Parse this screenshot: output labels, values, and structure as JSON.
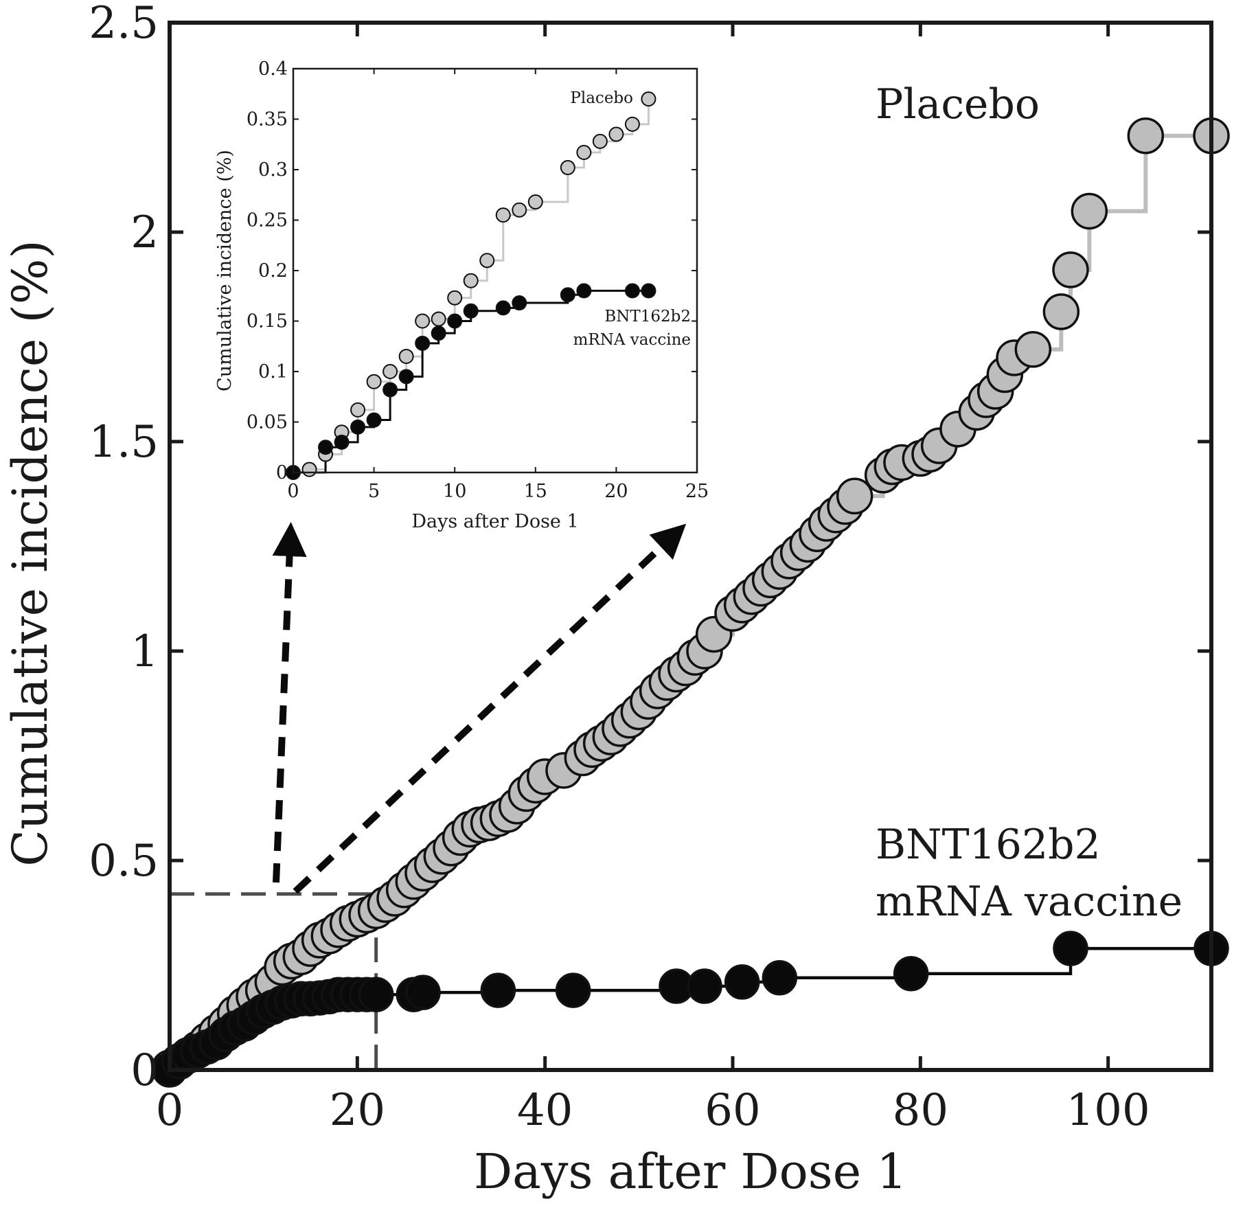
{
  "chart_data": [
    {
      "name": "main",
      "type": "scatter",
      "xlabel": "Days after Dose 1",
      "ylabel": "Cumulative incidence (%)",
      "xlim": [
        0,
        111
      ],
      "ylim": [
        0,
        2.5
      ],
      "xticks": [
        0,
        20,
        40,
        60,
        80,
        100
      ],
      "yticks": [
        0,
        0.5,
        1,
        1.5,
        2,
        2.5
      ],
      "xtick_labels": [
        "0",
        "20",
        "40",
        "60",
        "80",
        "100"
      ],
      "ytick_labels": [
        "0",
        "0.5",
        "1",
        "1.5",
        "2",
        "2.5"
      ],
      "grid": false,
      "zoom_box": {
        "x": [
          0,
          22
        ],
        "y": [
          0,
          0.42
        ]
      },
      "series": [
        {
          "name": "Placebo",
          "label_lines": [
            "Placebo"
          ],
          "color": "#bdbdbd",
          "line_color": "#bdbdbd",
          "x": [
            0,
            1,
            2,
            3,
            4,
            5,
            6,
            7,
            8,
            9,
            10,
            11,
            12,
            13,
            14,
            15,
            16,
            17,
            18,
            19,
            20,
            21,
            22,
            23,
            24,
            25,
            26,
            27,
            28,
            29,
            30,
            31,
            32,
            33,
            34,
            35,
            36,
            37,
            38,
            39,
            40,
            42,
            44,
            45,
            46,
            47,
            48,
            49,
            50,
            51,
            52,
            53,
            54,
            55,
            56,
            57,
            58,
            60,
            61,
            62,
            63,
            64,
            65,
            66,
            67,
            68,
            69,
            70,
            71,
            72,
            73,
            76,
            77,
            78,
            80,
            81,
            82,
            84,
            86,
            87,
            88,
            89,
            90,
            92,
            95,
            96,
            98,
            104,
            111
          ],
          "y": [
            0.005,
            0.02,
            0.035,
            0.05,
            0.07,
            0.09,
            0.11,
            0.135,
            0.155,
            0.175,
            0.19,
            0.21,
            0.245,
            0.26,
            0.27,
            0.29,
            0.31,
            0.32,
            0.335,
            0.35,
            0.36,
            0.37,
            0.38,
            0.395,
            0.41,
            0.43,
            0.45,
            0.47,
            0.49,
            0.51,
            0.53,
            0.555,
            0.575,
            0.585,
            0.59,
            0.6,
            0.61,
            0.63,
            0.66,
            0.68,
            0.7,
            0.715,
            0.745,
            0.765,
            0.78,
            0.795,
            0.815,
            0.835,
            0.855,
            0.88,
            0.905,
            0.925,
            0.945,
            0.96,
            0.985,
            1.0,
            1.04,
            1.09,
            1.11,
            1.13,
            1.15,
            1.17,
            1.19,
            1.215,
            1.235,
            1.255,
            1.28,
            1.305,
            1.325,
            1.345,
            1.37,
            1.42,
            1.44,
            1.45,
            1.46,
            1.47,
            1.49,
            1.53,
            1.57,
            1.6,
            1.62,
            1.66,
            1.7,
            1.72,
            1.81,
            1.91,
            2.05,
            2.23,
            2.23
          ]
        },
        {
          "name": "BNT162b2 mRNA vaccine",
          "label_lines": [
            "BNT162b2",
            "mRNA vaccine"
          ],
          "color": "#0a0a0a",
          "line_color": "#0a0a0a",
          "x": [
            0,
            1,
            2,
            3,
            4,
            5,
            6,
            7,
            8,
            9,
            10,
            11,
            12,
            13,
            14,
            15,
            16,
            17,
            18,
            19,
            20,
            21,
            22,
            26,
            27,
            35,
            43,
            54,
            57,
            61,
            65,
            79,
            96,
            111
          ],
          "y": [
            0.0,
            0.02,
            0.035,
            0.045,
            0.055,
            0.065,
            0.085,
            0.1,
            0.11,
            0.125,
            0.14,
            0.15,
            0.16,
            0.165,
            0.17,
            0.17,
            0.172,
            0.175,
            0.18,
            0.18,
            0.18,
            0.18,
            0.18,
            0.18,
            0.185,
            0.19,
            0.19,
            0.2,
            0.2,
            0.21,
            0.22,
            0.23,
            0.29,
            0.29
          ]
        }
      ]
    },
    {
      "name": "inset",
      "type": "scatter",
      "xlabel": "Days after Dose 1",
      "ylabel": "Cumulative incidence (%)",
      "xlim": [
        0,
        25
      ],
      "ylim": [
        0,
        0.4
      ],
      "xticks": [
        0,
        5,
        10,
        15,
        20,
        25
      ],
      "yticks": [
        0,
        0.05,
        0.1,
        0.15,
        0.2,
        0.25,
        0.3,
        0.35,
        0.4
      ],
      "xtick_labels": [
        "0",
        "5",
        "10",
        "15",
        "20",
        "25"
      ],
      "ytick_labels": [
        "0",
        "0.05",
        "0.1",
        "0.15",
        "0.2",
        "0.25",
        "0.3",
        "0.35",
        "0.4"
      ],
      "grid": false,
      "series": [
        {
          "name": "Placebo",
          "label_lines": [
            "Placebo"
          ],
          "color": "#c8c8c8",
          "line_color": "#c8c8c8",
          "x": [
            1,
            2,
            3,
            4,
            5,
            6,
            7,
            8,
            9,
            10,
            11,
            12,
            13,
            14,
            15,
            17,
            18,
            19,
            20,
            21,
            22
          ],
          "y": [
            0.003,
            0.018,
            0.04,
            0.062,
            0.09,
            0.1,
            0.115,
            0.15,
            0.152,
            0.173,
            0.19,
            0.21,
            0.255,
            0.26,
            0.268,
            0.302,
            0.317,
            0.328,
            0.335,
            0.345,
            0.37
          ]
        },
        {
          "name": "BNT162b2 mRNA vaccine",
          "label_lines": [
            "BNT162b2",
            "mRNA vaccine"
          ],
          "color": "#0a0a0a",
          "line_color": "#0a0a0a",
          "x": [
            0,
            2,
            3,
            4,
            5,
            6,
            7,
            8,
            9,
            10,
            11,
            13,
            14,
            17,
            18,
            21,
            22
          ],
          "y": [
            0.0,
            0.025,
            0.03,
            0.045,
            0.052,
            0.082,
            0.095,
            0.128,
            0.138,
            0.15,
            0.16,
            0.163,
            0.168,
            0.176,
            0.18,
            0.18,
            0.18
          ]
        }
      ]
    }
  ]
}
